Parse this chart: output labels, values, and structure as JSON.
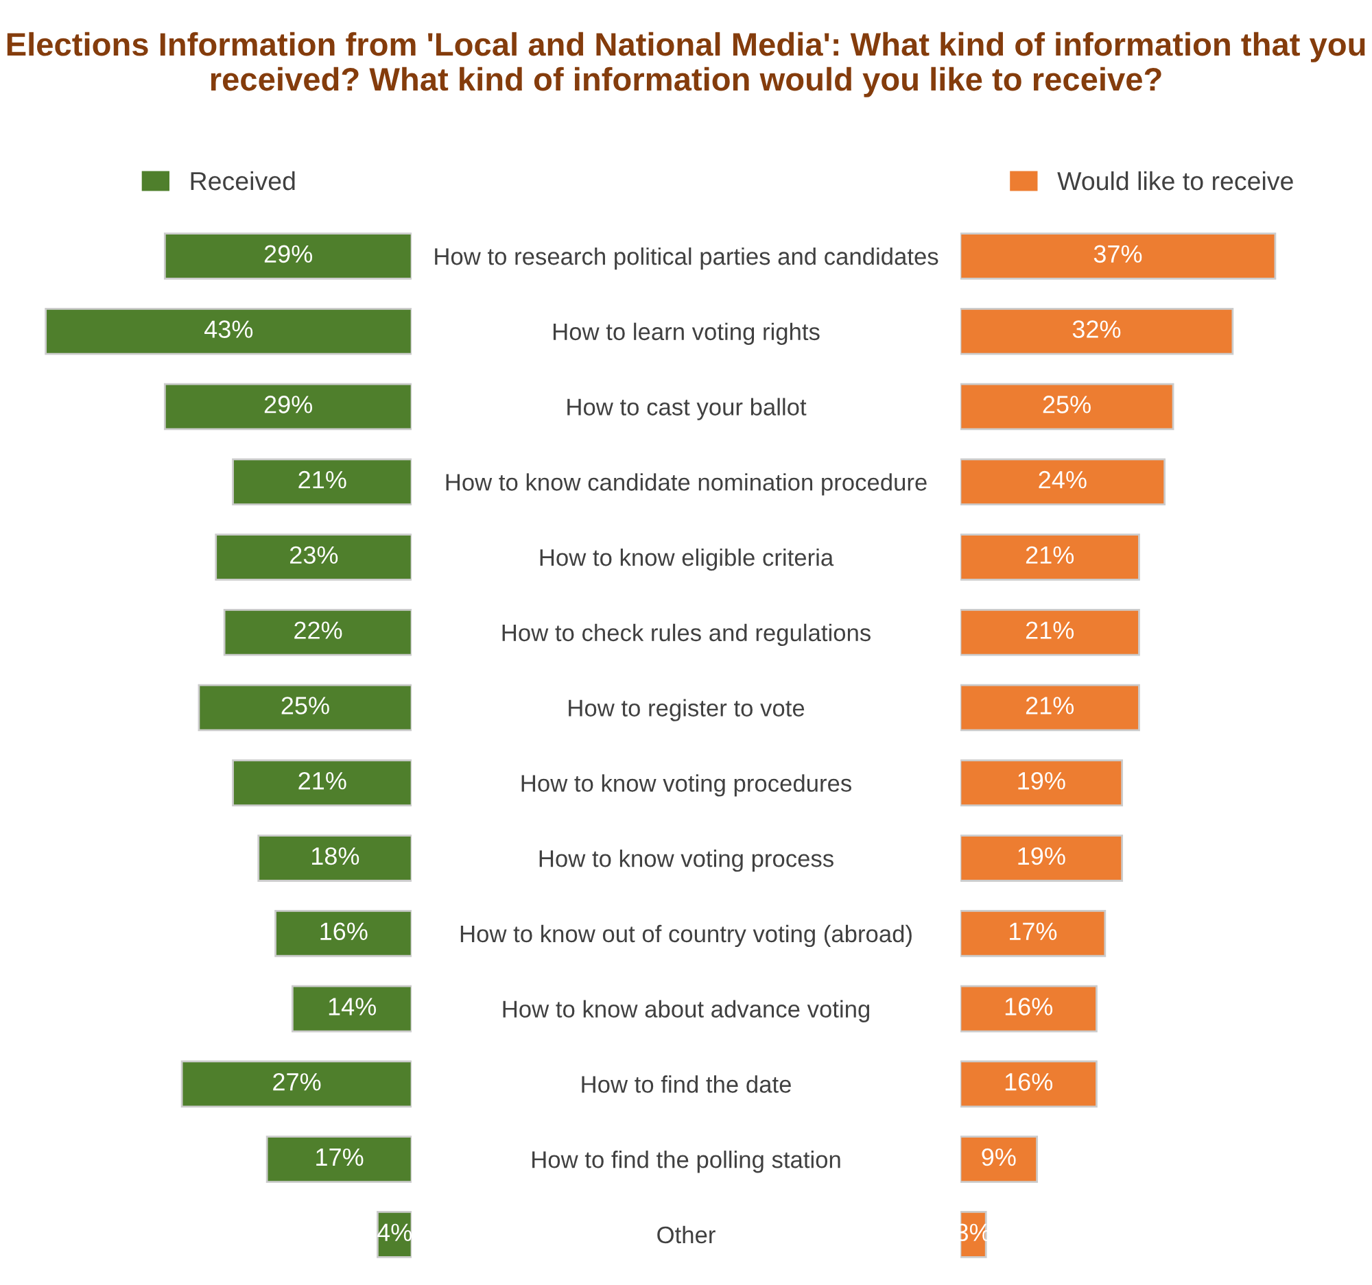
{
  "chart_data": [
    {
      "type": "bar",
      "orientation": "horizontal",
      "title": "Elections Information from 'Local and National Media': What kind of information that you received? What kind of information would you like to receive?",
      "categories": [
        "How to research political parties and candidates",
        "How to learn voting rights",
        "How to cast your ballot",
        "How to know candidate nomination procedure",
        "How to know eligible criteria",
        "How to check rules and regulations",
        "How to register to vote",
        "How to know voting procedures",
        "How to know voting process",
        "How to know out of country voting (abroad)",
        "How to know about advance voting",
        "How to find the date",
        "How to find the polling station",
        "Other"
      ],
      "series": [
        {
          "name": "Received",
          "color": "#4f7f2c",
          "values": [
            29,
            43,
            29,
            21,
            23,
            22,
            25,
            21,
            18,
            16,
            14,
            27,
            17,
            4
          ],
          "value_labels": [
            "29%",
            "43%",
            "29%",
            "21%",
            "23%",
            "22%",
            "25%",
            "21%",
            "18%",
            "16%",
            "14%",
            "27%",
            "17%",
            "4%"
          ]
        }
      ],
      "legend": "top"
    },
    {
      "type": "bar",
      "orientation": "horizontal",
      "categories": [
        null,
        null,
        null,
        null,
        null,
        null,
        null,
        null,
        null,
        null,
        null,
        null,
        null,
        null
      ],
      "series": [
        {
          "name": "Would like to receive",
          "color": "#ed7d31",
          "values": [
            37,
            32,
            25,
            24,
            21,
            21,
            21,
            19,
            19,
            17,
            16,
            16,
            9,
            3
          ],
          "value_labels": [
            "37%",
            "32%",
            "25%",
            "24%",
            "21%",
            "21%",
            "21%",
            "19%",
            "19%",
            "17%",
            "16%",
            "16%",
            "9%",
            "3%"
          ]
        }
      ],
      "legend": "top"
    }
  ]
}
